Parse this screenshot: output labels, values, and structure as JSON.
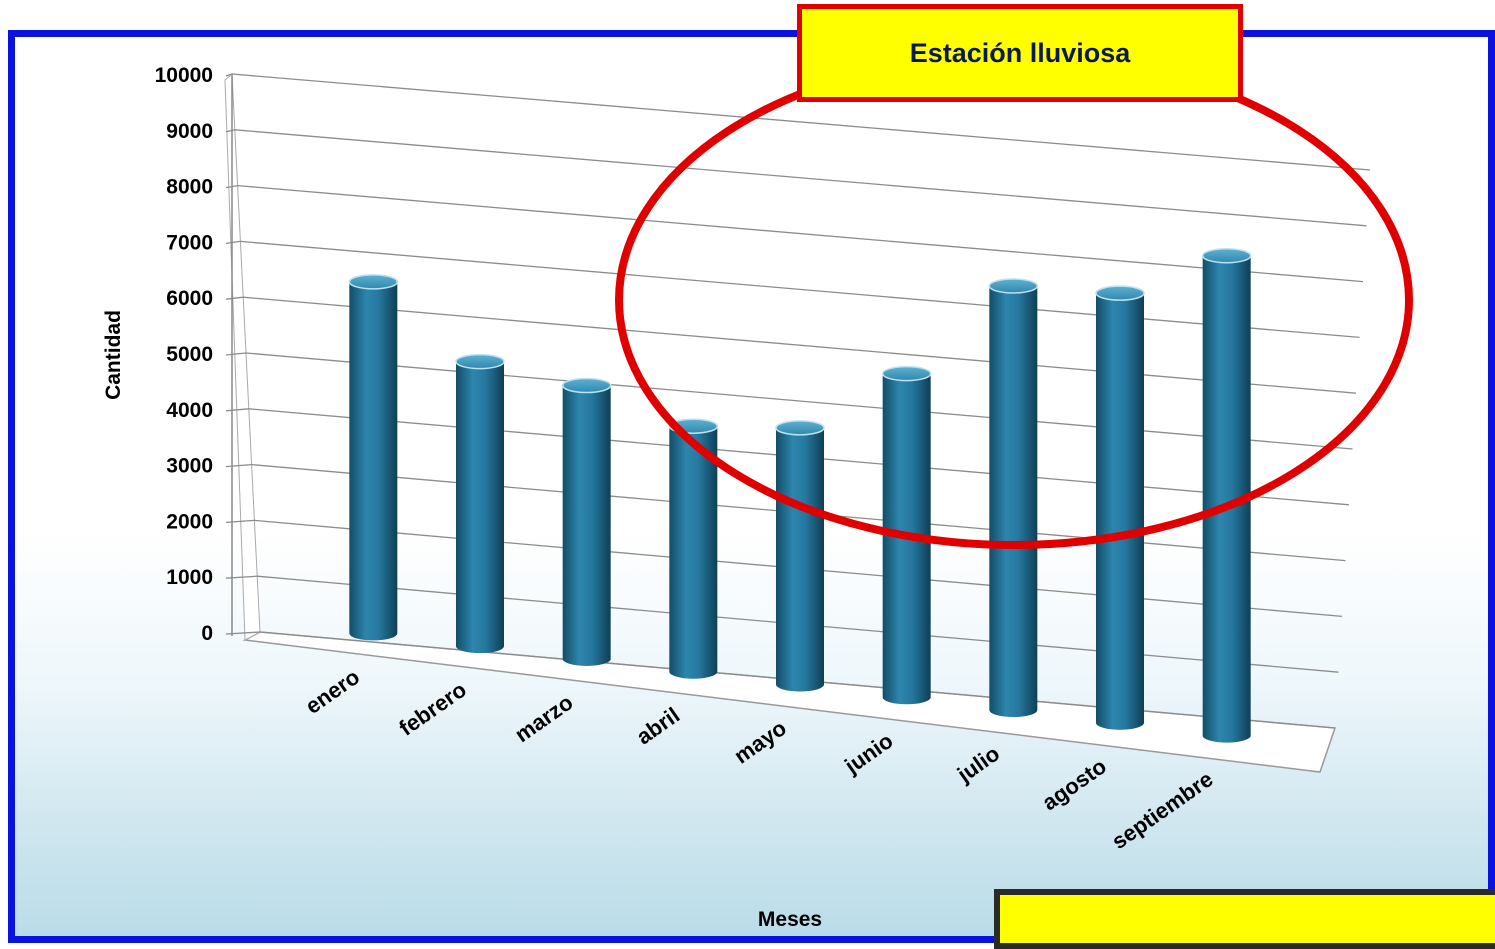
{
  "chart_data": {
    "type": "bar",
    "style": "3d-cylinder",
    "categories": [
      "enero",
      "febrero",
      "marzo",
      "abril",
      "mayo",
      "junio",
      "julio",
      "agosto",
      "septiembre"
    ],
    "series": [
      {
        "values": [
          6300,
          5100,
          4900,
          4400,
          4600,
          5800,
          7600,
          7700,
          8600
        ]
      }
    ],
    "xlabel": "Meses",
    "ylabel": "Cantidad",
    "ylim": [
      0,
      10000
    ],
    "yticks": [
      "0",
      "1000",
      "2000",
      "3000",
      "4000",
      "5000",
      "6000",
      "7000",
      "8000",
      "9000",
      "10000"
    ],
    "grid": true,
    "legend": "none",
    "bar_color": "#1f6f92"
  },
  "annotation": {
    "label": "Estación lluviosa",
    "outline_color": "#e00000",
    "fill_color": "#ffff00"
  }
}
